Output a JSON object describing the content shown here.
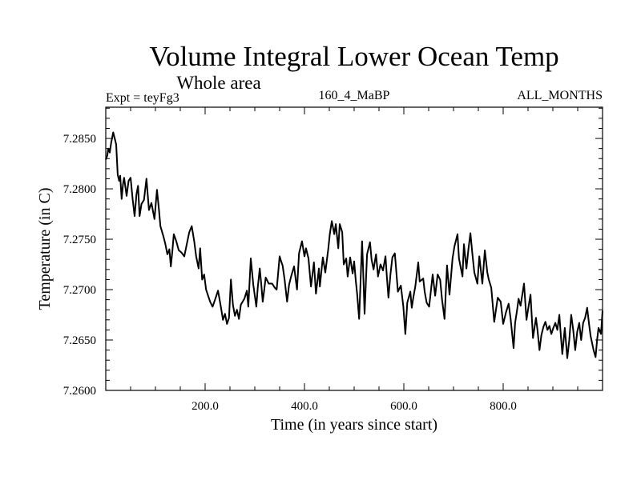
{
  "chart_data": {
    "type": "line",
    "title": "Volume Integral Lower Ocean Temp",
    "subtitle": "Whole area",
    "annotations": {
      "left": "Expt = teyFg3",
      "center": "160_4_MaBP",
      "right": "ALL_MONTHS"
    },
    "xlabel": "Time (in years since start)",
    "ylabel": "Temperature (in C)",
    "xlim": [
      0,
      1000
    ],
    "ylim": [
      7.26,
      7.2881
    ],
    "x_ticks": [
      200,
      400,
      600,
      800
    ],
    "x_tick_labels": [
      "200.0",
      "400.0",
      "600.0",
      "800.0"
    ],
    "x_minor_step": 50,
    "y_ticks": [
      7.26,
      7.265,
      7.27,
      7.275,
      7.28,
      7.285
    ],
    "y_tick_labels": [
      "7.2600",
      "7.2650",
      "7.2700",
      "7.2750",
      "7.2800",
      "7.2850"
    ],
    "y_minor_step": 0.001,
    "grid": false,
    "legend": "none",
    "line_color": "#000000",
    "series": [
      {
        "name": "Volume Integral Lower Ocean Temp",
        "x": [
          0,
          3,
          5,
          8,
          11,
          15,
          18,
          21,
          24,
          27,
          29,
          32,
          35,
          37,
          40,
          42,
          46,
          50,
          54,
          58,
          62,
          65,
          68,
          72,
          77,
          82,
          87,
          92,
          98,
          103,
          107,
          110,
          116,
          120,
          124,
          128,
          131,
          134,
          137,
          142,
          147,
          152,
          158,
          163,
          168,
          173,
          178,
          182,
          187,
          190,
          194,
          198,
          202,
          206,
          210,
          215,
          220,
          226,
          231,
          236,
          240,
          244,
          248,
          252,
          256,
          260,
          264,
          268,
          272,
          279,
          284,
          287,
          292,
          297,
          303,
          306,
          310,
          313,
          316,
          319,
          322,
          328,
          335,
          340,
          344,
          347,
          350,
          353,
          356,
          360,
          365,
          369,
          373,
          379,
          385,
          389,
          395,
          400,
          403,
          408,
          413,
          419,
          423,
          429,
          431,
          437,
          442,
          448,
          451,
          455,
          460,
          463,
          468,
          471,
          476,
          479,
          484,
          487,
          492,
          497,
          500,
          503,
          506,
          510,
          513,
          516,
          518,
          521,
          526,
          532,
          535,
          539,
          544,
          548,
          553,
          558,
          563,
          566,
          569,
          573,
          577,
          582,
          588,
          594,
          599,
          603,
          607,
          613,
          616,
          619,
          623,
          629,
          632,
          639,
          642,
          646,
          651,
          658,
          663,
          668,
          673,
          677,
          682,
          687,
          692,
          698,
          702,
          708,
          711,
          718,
          721,
          726,
          730,
          734,
          738,
          742,
          748,
          752,
          758,
          763,
          768,
          771,
          776,
          782,
          789,
          795,
          800,
          806,
          811,
          815,
          821,
          824,
          828,
          831,
          835,
          842,
          847,
          850,
          855,
          860,
          866,
          869,
          873,
          877,
          881,
          885,
          889,
          893,
          897,
          901,
          905,
          909,
          913,
          916,
          919,
          924,
          929,
          933,
          937,
          941,
          945,
          949,
          953,
          957,
          961,
          965,
          969,
          973,
          976,
          982,
          986,
          989,
          992,
          997,
          1000
        ],
        "y": [
          7.2829,
          7.2833,
          7.284,
          7.2836,
          7.2846,
          7.2856,
          7.285,
          7.2844,
          7.2814,
          7.2808,
          7.2813,
          7.279,
          7.2806,
          7.2811,
          7.28,
          7.2793,
          7.2808,
          7.2811,
          7.279,
          7.2773,
          7.2795,
          7.2803,
          7.2773,
          7.2785,
          7.2789,
          7.281,
          7.2779,
          7.2786,
          7.277,
          7.2799,
          7.278,
          7.2763,
          7.2753,
          7.2745,
          7.2735,
          7.274,
          7.2723,
          7.2738,
          7.2755,
          7.2748,
          7.2739,
          7.2737,
          7.2733,
          7.2745,
          7.2757,
          7.2763,
          7.2748,
          7.2733,
          7.2721,
          7.2741,
          7.271,
          7.2715,
          7.27,
          7.2694,
          7.2688,
          7.2683,
          7.269,
          7.2699,
          7.2685,
          7.267,
          7.2676,
          7.2666,
          7.2672,
          7.271,
          7.2685,
          7.2674,
          7.268,
          7.2671,
          7.2685,
          7.2691,
          7.2699,
          7.2683,
          7.2731,
          7.2705,
          7.2683,
          7.2702,
          7.2721,
          7.2705,
          7.2688,
          7.27,
          7.2712,
          7.2706,
          7.2706,
          7.2702,
          7.27,
          7.2716,
          7.2733,
          7.2728,
          7.2724,
          7.271,
          7.2688,
          7.2705,
          7.2713,
          7.2723,
          7.27,
          7.2736,
          7.2748,
          7.2733,
          7.2741,
          7.2731,
          7.2703,
          7.2727,
          7.2696,
          7.2721,
          7.2703,
          7.2732,
          7.2717,
          7.2741,
          7.2755,
          7.2768,
          7.2755,
          7.2765,
          7.2741,
          7.2765,
          7.2757,
          7.2725,
          7.2731,
          7.2713,
          7.2732,
          7.2716,
          7.2728,
          7.271,
          7.2696,
          7.2671,
          7.271,
          7.2748,
          7.272,
          7.2676,
          7.2735,
          7.2747,
          7.273,
          7.272,
          7.2735,
          7.2713,
          7.2725,
          7.2719,
          7.2733,
          7.2712,
          7.2692,
          7.2715,
          7.2732,
          7.2736,
          7.2698,
          7.2704,
          7.2683,
          7.2656,
          7.2687,
          7.2698,
          7.2682,
          7.2692,
          7.2703,
          7.2727,
          7.2708,
          7.2711,
          7.2698,
          7.2687,
          7.2683,
          7.2715,
          7.2694,
          7.2715,
          7.271,
          7.269,
          7.2671,
          7.2724,
          7.2695,
          7.2731,
          7.2743,
          7.2755,
          7.2731,
          7.2713,
          7.2745,
          7.2721,
          7.274,
          7.2756,
          7.2735,
          7.2717,
          7.2706,
          7.2733,
          7.2706,
          7.2739,
          7.2717,
          7.271,
          7.2702,
          7.2668,
          7.2692,
          7.2688,
          7.2666,
          7.2678,
          7.2686,
          7.2671,
          7.2642,
          7.2667,
          7.268,
          7.2691,
          7.2684,
          7.2706,
          7.267,
          7.268,
          7.2695,
          7.2652,
          7.2672,
          7.266,
          7.264,
          7.2655,
          7.2663,
          7.2668,
          7.266,
          7.2664,
          7.2656,
          7.2662,
          7.2667,
          7.266,
          7.2675,
          7.2655,
          7.2636,
          7.2662,
          7.2632,
          7.265,
          7.2675,
          7.266,
          7.264,
          7.2658,
          7.2667,
          7.265,
          7.2667,
          7.2672,
          7.2682,
          7.2665,
          7.2654,
          7.264,
          7.2633,
          7.265,
          7.2662,
          7.2656,
          7.2679
        ]
      }
    ]
  }
}
